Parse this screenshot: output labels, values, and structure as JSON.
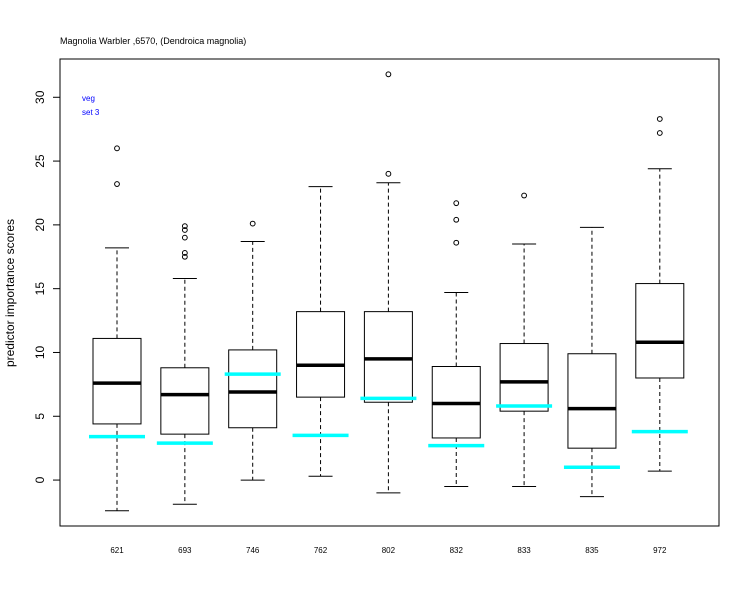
{
  "chart_data": {
    "type": "boxplot",
    "title": "Magnolia Warbler ,6570, (Dendroica magnolia)",
    "ylabel": "predictor importance scores",
    "ylim": [
      -3.6,
      33.0
    ],
    "yticks": [
      0,
      5,
      10,
      15,
      20,
      25,
      30
    ],
    "legend": {
      "lines": [
        "veg",
        "set 3"
      ],
      "color": "#0000ff",
      "placement": "top-left"
    },
    "reference_color": "#00ffff",
    "categories": [
      "621",
      "693",
      "746",
      "762",
      "802",
      "832",
      "833",
      "835",
      "972"
    ],
    "boxes": [
      {
        "name": "621",
        "whisker_low": -2.4,
        "q1": 4.4,
        "median": 7.6,
        "q3": 11.1,
        "whisker_high": 18.2,
        "outliers": [
          23.2,
          26.0
        ],
        "reference": 3.4
      },
      {
        "name": "693",
        "whisker_low": -1.9,
        "q1": 3.6,
        "median": 6.7,
        "q3": 8.8,
        "whisker_high": 15.8,
        "outliers": [
          17.5,
          17.8,
          19.0,
          19.6,
          19.9
        ],
        "reference": 2.9
      },
      {
        "name": "746",
        "whisker_low": 0.0,
        "q1": 4.1,
        "median": 6.9,
        "q3": 10.2,
        "whisker_high": 18.7,
        "outliers": [
          20.1
        ],
        "reference": 8.3
      },
      {
        "name": "762",
        "whisker_low": 0.3,
        "q1": 6.5,
        "median": 9.0,
        "q3": 13.2,
        "whisker_high": 23.0,
        "outliers": [],
        "reference": 3.5
      },
      {
        "name": "802",
        "whisker_low": -1.0,
        "q1": 6.1,
        "median": 9.5,
        "q3": 13.2,
        "whisker_high": 23.3,
        "outliers": [
          24.0,
          31.8
        ],
        "reference": 6.4
      },
      {
        "name": "832",
        "whisker_low": -0.5,
        "q1": 3.3,
        "median": 6.0,
        "q3": 8.9,
        "whisker_high": 14.7,
        "outliers": [
          18.6,
          20.4,
          21.7
        ],
        "reference": 2.7
      },
      {
        "name": "833",
        "whisker_low": -0.5,
        "q1": 5.4,
        "median": 7.7,
        "q3": 10.7,
        "whisker_high": 18.5,
        "outliers": [
          22.3
        ],
        "reference": 5.8
      },
      {
        "name": "835",
        "whisker_low": -1.3,
        "q1": 2.5,
        "median": 5.6,
        "q3": 9.9,
        "whisker_high": 19.8,
        "outliers": [],
        "reference": 1.0
      },
      {
        "name": "972",
        "whisker_low": 0.7,
        "q1": 8.0,
        "median": 10.8,
        "q3": 15.4,
        "whisker_high": 24.4,
        "outliers": [
          27.2,
          28.3
        ],
        "reference": 3.8
      }
    ]
  }
}
